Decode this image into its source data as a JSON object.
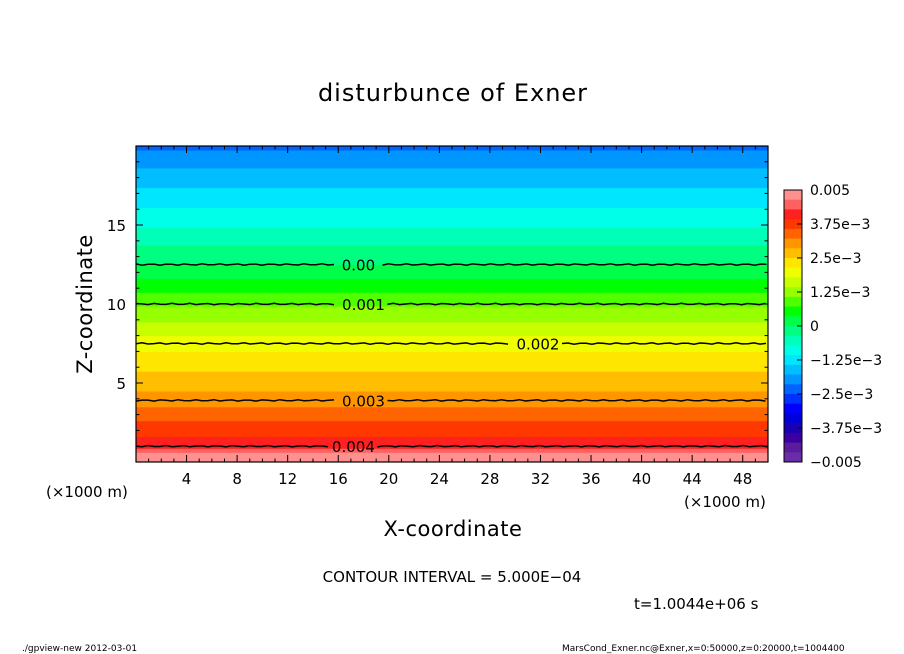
{
  "chart_data": {
    "type": "heatmap",
    "title": "disturbunce of Exner",
    "xlabel": "X-coordinate",
    "ylabel": "Z-coordinate",
    "x_unit_left": "(×1000 m)",
    "x_unit_right": "(×1000 m)",
    "xlim": [
      0,
      50
    ],
    "ylim": [
      0,
      20
    ],
    "x_ticks": [
      4,
      8,
      12,
      16,
      20,
      24,
      28,
      32,
      36,
      40,
      44,
      48
    ],
    "x_tick_labels": [
      "4",
      "8",
      "12",
      "16",
      "20",
      "24",
      "28",
      "32",
      "36",
      "40",
      "44",
      "48"
    ],
    "y_ticks": [
      5,
      10,
      15
    ],
    "y_tick_labels": [
      "5",
      "10",
      "15"
    ],
    "z_profile": [
      {
        "z": 0,
        "value": 0.0054
      },
      {
        "z": 1,
        "value": 0.0042
      },
      {
        "z": 4,
        "value": 0.003
      },
      {
        "z": 7.5,
        "value": 0.002
      },
      {
        "z": 10,
        "value": 0.001
      },
      {
        "z": 12.5,
        "value": 0.0
      },
      {
        "z": 20,
        "value": -0.0022
      }
    ],
    "contours": [
      {
        "value": 0.004,
        "label": "0.004",
        "z": 1.0,
        "label_x": 17.2
      },
      {
        "value": 0.003,
        "label": "0.003",
        "z": 3.9,
        "label_x": 18.0
      },
      {
        "value": 0.002,
        "label": "0.002",
        "z": 7.5,
        "label_x": 31.8
      },
      {
        "value": 0.001,
        "label": "0.001",
        "z": 10.0,
        "label_x": 18.0
      },
      {
        "value": 0.0,
        "label": "0.00",
        "z": 12.5,
        "label_x": 17.6
      }
    ],
    "colorbar": {
      "range": [
        -0.005,
        0.005
      ],
      "tick_labels": [
        "0.005",
        "3.75e−3",
        "2.5e−3",
        "1.25e−3",
        "0",
        "−1.25e−3",
        "−2.5e−3",
        "−3.75e−3",
        "−0.005"
      ],
      "colors": [
        "#ff9090",
        "#ff6060",
        "#ff2020",
        "#ff3800",
        "#ff6400",
        "#ff9600",
        "#ffbe00",
        "#ffe600",
        "#f0ff00",
        "#c8ff00",
        "#96ff00",
        "#50ff00",
        "#00ff00",
        "#00ff48",
        "#00ff80",
        "#00ffb8",
        "#00ffe8",
        "#00e6ff",
        "#00beff",
        "#0096ff",
        "#0064ff",
        "#0032ff",
        "#0000ff",
        "#0000d8",
        "#1a00b4",
        "#3a00a0",
        "#5a1c9c",
        "#6a2ca8"
      ]
    },
    "contour_interval": "CONTOUR INTERVAL = 5.000E−04",
    "time_label": "t=1.0044e+06 s",
    "legend": "right (colorbar)",
    "grid": false
  },
  "footer": {
    "left": "./gpview-new   2012-03-01",
    "right": "MarsCond_Exner.nc@Exner,x=0:50000,z=0:20000,t=1004400"
  }
}
